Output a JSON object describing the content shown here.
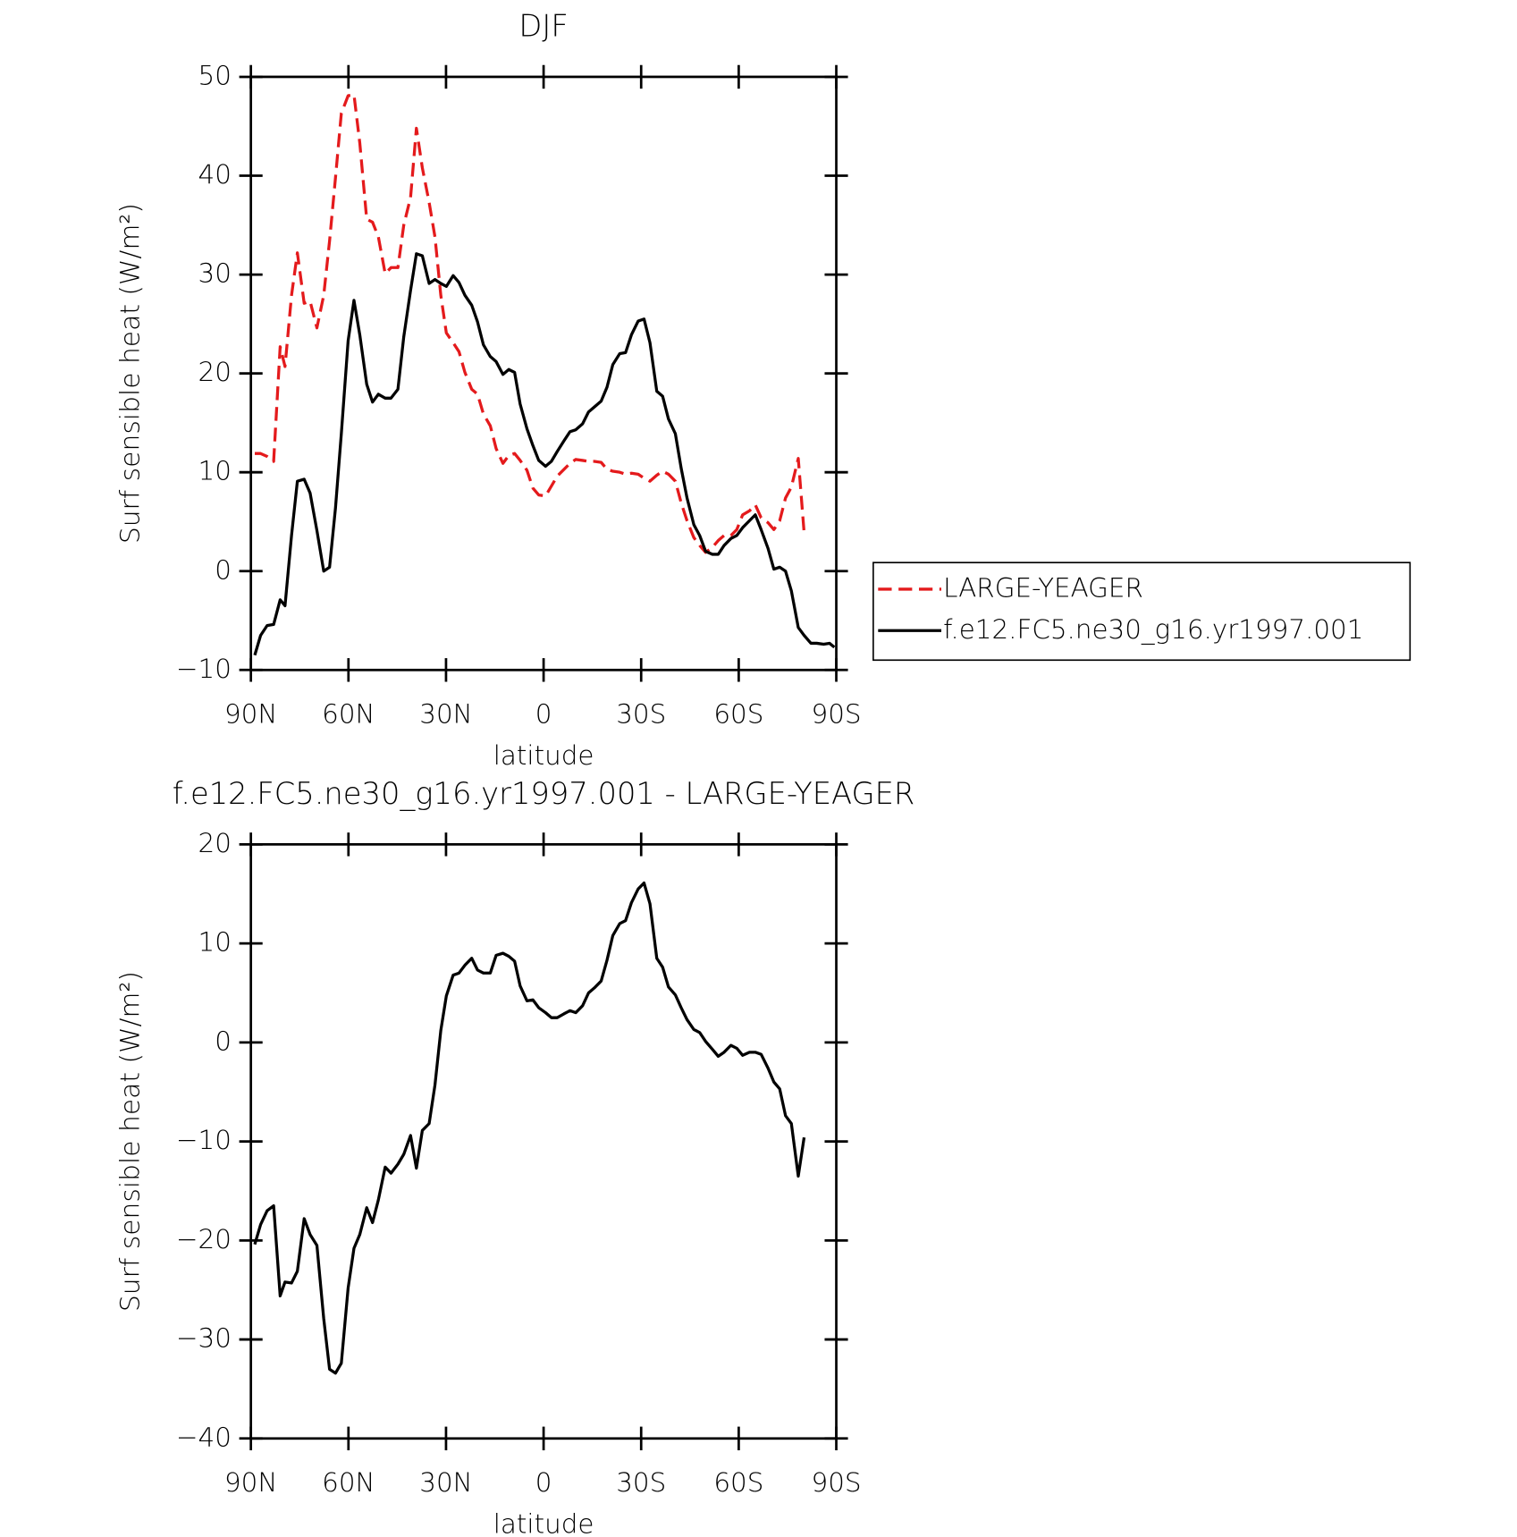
{
  "chart_data": [
    {
      "type": "line",
      "title": "DJF",
      "x_label": "latitude",
      "y_label": "Surf sensible heat (W/m²)",
      "x": [
        88.8,
        87,
        85,
        83,
        81,
        79.5,
        77.5,
        75.7,
        73.6,
        71.8,
        69.7,
        67.6,
        65.8,
        64,
        62.2,
        60.1,
        58.3,
        56.5,
        54.4,
        52.6,
        50.8,
        48.7,
        46.9,
        44.8,
        43,
        40.9,
        39.1,
        37.3,
        35.2,
        33.4,
        31.6,
        29.9,
        27.8,
        26,
        24.2,
        22.1,
        20.3,
        18.5,
        16.4,
        14.6,
        12.5,
        10.7,
        8.9,
        7.2,
        5.1,
        3.3,
        1.5,
        -0.6,
        -2.4,
        -4.2,
        -6.3,
        -8.1,
        -9.9,
        -12,
        -13.8,
        -15.6,
        -17.7,
        -19.5,
        -21.3,
        -23.4,
        -25.2,
        -27,
        -29.1,
        -30.9,
        -32.7,
        -34.8,
        -36.6,
        -38.4,
        -40.5,
        -42.3,
        -44.1,
        -46.2,
        -48,
        -49.8,
        -51.9,
        -53.7,
        -55.5,
        -57.6,
        -59.4,
        -61.2,
        -63.3,
        -65.1,
        -66.9,
        -69,
        -70.8,
        -72.6,
        -74.4,
        -76.2,
        -78.3,
        -80.1,
        -82.2,
        -84,
        -86.1,
        -87.9,
        -89.4
      ],
      "series": [
        {
          "name": "LARGE-YEAGER",
          "color": "#e41a1c",
          "dash": true,
          "values": [
            11.9,
            11.9,
            11.6,
            11.1,
            22.7,
            20.7,
            27.9,
            32.2,
            27.1,
            27.3,
            24.6,
            27.9,
            33.4,
            39.8,
            46.3,
            48.1,
            48.2,
            43.3,
            35.6,
            35.3,
            33.8,
            30.1,
            30.7,
            30.7,
            35,
            37.8,
            44.8,
            40.8,
            37.3,
            33.8,
            27.9,
            24.1,
            23.1,
            22.2,
            20.1,
            18.4,
            17.9,
            15.9,
            14.7,
            12.4,
            10.9,
            11.7,
            11.9,
            11.2,
            10.2,
            8.4,
            7.7,
            7.6,
            8.6,
            9.6,
            10.3,
            10.9,
            11.3,
            11.2,
            11.1,
            11.1,
            11,
            10.3,
            10.1,
            10,
            9.8,
            9.9,
            9.8,
            9.4,
            9.1,
            9.7,
            10.1,
            9.8,
            9.1,
            6.9,
            5.1,
            3.4,
            2.6,
            1.9,
            2.4,
            3.1,
            3.6,
            3.6,
            4.2,
            5.7,
            6.1,
            6.7,
            5.4,
            4.9,
            4.2,
            5.1,
            7.4,
            8.5,
            11.4,
            3.9,
            null,
            null,
            null,
            null,
            null
          ]
        },
        {
          "name": "f.e12.FC5.ne30_g16.yr1997.001",
          "color": "#000000",
          "dash": false,
          "values": [
            -8.5,
            -6.5,
            -5.5,
            -5.4,
            -2.9,
            -3.5,
            3.6,
            9.1,
            9.3,
            7.9,
            4.1,
            0,
            0.4,
            6.4,
            13.9,
            23.3,
            27.4,
            23.9,
            18.9,
            17.1,
            17.9,
            17.5,
            17.5,
            18.4,
            23.7,
            28.4,
            32.1,
            31.9,
            29.1,
            29.5,
            29.1,
            28.8,
            29.9,
            29.2,
            27.9,
            26.9,
            25.2,
            22.9,
            21.7,
            21.2,
            19.9,
            20.4,
            20.1,
            16.9,
            14.4,
            12.7,
            11.2,
            10.6,
            11.1,
            12.1,
            13.2,
            14.1,
            14.3,
            14.9,
            16.1,
            16.6,
            17.2,
            18.6,
            20.9,
            22,
            22.1,
            23.9,
            25.3,
            25.5,
            23.1,
            18.2,
            17.7,
            15.4,
            13.9,
            10.4,
            7.4,
            4.7,
            3.6,
            2,
            1.7,
            1.7,
            2.6,
            3.3,
            3.6,
            4.4,
            5.1,
            5.7,
            4.2,
            2.3,
            0.2,
            0.4,
            0,
            -2,
            -5.7,
            -6.5,
            -7.3,
            -7.3,
            -7.4,
            -7.3,
            -7.7
          ]
        }
      ],
      "xlim": [
        90,
        -90
      ],
      "xticks": [
        {
          "value": 90,
          "label": "90N"
        },
        {
          "value": 60,
          "label": "60N"
        },
        {
          "value": 30,
          "label": "30N"
        },
        0,
        {
          "value": -30,
          "label": "30S"
        },
        {
          "value": -60,
          "label": "60S"
        },
        {
          "value": -90,
          "label": "90S"
        }
      ],
      "ylim": [
        -10,
        50
      ],
      "yticks": [
        {
          "value": -10,
          "label": "−10"
        },
        0,
        10,
        20,
        30,
        40,
        50
      ],
      "legend": "right"
    },
    {
      "type": "line",
      "title": "f.e12.FC5.ne30_g16.yr1997.001 - LARGE-YEAGER",
      "x_label": "latitude",
      "y_label": "Surf sensible heat (W/m²)",
      "x": [
        88.8,
        87,
        85,
        83,
        81,
        79.5,
        77.5,
        75.7,
        73.6,
        71.8,
        69.7,
        67.6,
        65.8,
        64,
        62.2,
        60.1,
        58.3,
        56.5,
        54.4,
        52.6,
        50.8,
        48.7,
        46.9,
        44.8,
        43,
        40.9,
        39.1,
        37.3,
        35.2,
        33.4,
        31.6,
        29.9,
        27.8,
        26,
        24.2,
        22.1,
        20.3,
        18.5,
        16.4,
        14.6,
        12.5,
        10.7,
        8.9,
        7.2,
        5.1,
        3.3,
        1.5,
        -0.6,
        -2.4,
        -4.2,
        -6.3,
        -8.1,
        -9.9,
        -12,
        -13.8,
        -15.6,
        -17.7,
        -19.5,
        -21.3,
        -23.4,
        -25.2,
        -27,
        -29.1,
        -30.9,
        -32.7,
        -34.8,
        -36.6,
        -38.4,
        -40.5,
        -42.3,
        -44.1,
        -46.2,
        -48,
        -49.8,
        -51.9,
        -53.7,
        -55.5,
        -57.6,
        -59.4,
        -61.2,
        -63.3,
        -65.1,
        -66.9,
        -69,
        -70.8,
        -72.6,
        -74.4,
        -76.2,
        -78.3,
        -80.1,
        -82.2,
        -84,
        -86.1,
        -87.9,
        -89.4
      ],
      "series": [
        {
          "color": "#000000",
          "dash": false,
          "values": [
            -20.4,
            -18.4,
            -17,
            -16.5,
            -25.6,
            -24.2,
            -24.3,
            -23.1,
            -17.8,
            -19.4,
            -20.5,
            -27.9,
            -33,
            -33.4,
            -32.4,
            -24.8,
            -20.8,
            -19.4,
            -16.7,
            -18.2,
            -15.9,
            -12.6,
            -13.2,
            -12.3,
            -11.3,
            -9.4,
            -12.7,
            -8.9,
            -8.2,
            -4.3,
            1.2,
            4.7,
            6.8,
            7,
            7.8,
            8.5,
            7.3,
            7,
            7,
            8.8,
            9,
            8.7,
            8.2,
            5.7,
            4.2,
            4.3,
            3.5,
            3,
            2.5,
            2.5,
            2.9,
            3.2,
            3,
            3.7,
            5,
            5.5,
            6.2,
            8.3,
            10.8,
            12,
            12.3,
            14.1,
            15.5,
            16.1,
            14,
            8.5,
            7.6,
            5.6,
            4.8,
            3.5,
            2.3,
            1.3,
            1,
            0.1,
            -0.7,
            -1.4,
            -1,
            -0.3,
            -0.6,
            -1.3,
            -1,
            -1,
            -1.2,
            -2.6,
            -4,
            -4.7,
            -7.4,
            -8.2,
            -13.5,
            -9.6,
            null,
            null,
            null,
            null,
            null
          ]
        }
      ],
      "xlim": [
        90,
        -90
      ],
      "xticks": [
        {
          "value": 90,
          "label": "90N"
        },
        {
          "value": 60,
          "label": "60N"
        },
        {
          "value": 30,
          "label": "30N"
        },
        0,
        {
          "value": -30,
          "label": "30S"
        },
        {
          "value": -60,
          "label": "60S"
        },
        {
          "value": -90,
          "label": "90S"
        }
      ],
      "ylim": [
        -40,
        20
      ],
      "yticks": [
        {
          "value": -40,
          "label": "−40"
        },
        {
          "value": -30,
          "label": "−30"
        },
        {
          "value": -20,
          "label": "−20"
        },
        {
          "value": -10,
          "label": "−10"
        },
        0,
        10,
        20
      ]
    }
  ]
}
